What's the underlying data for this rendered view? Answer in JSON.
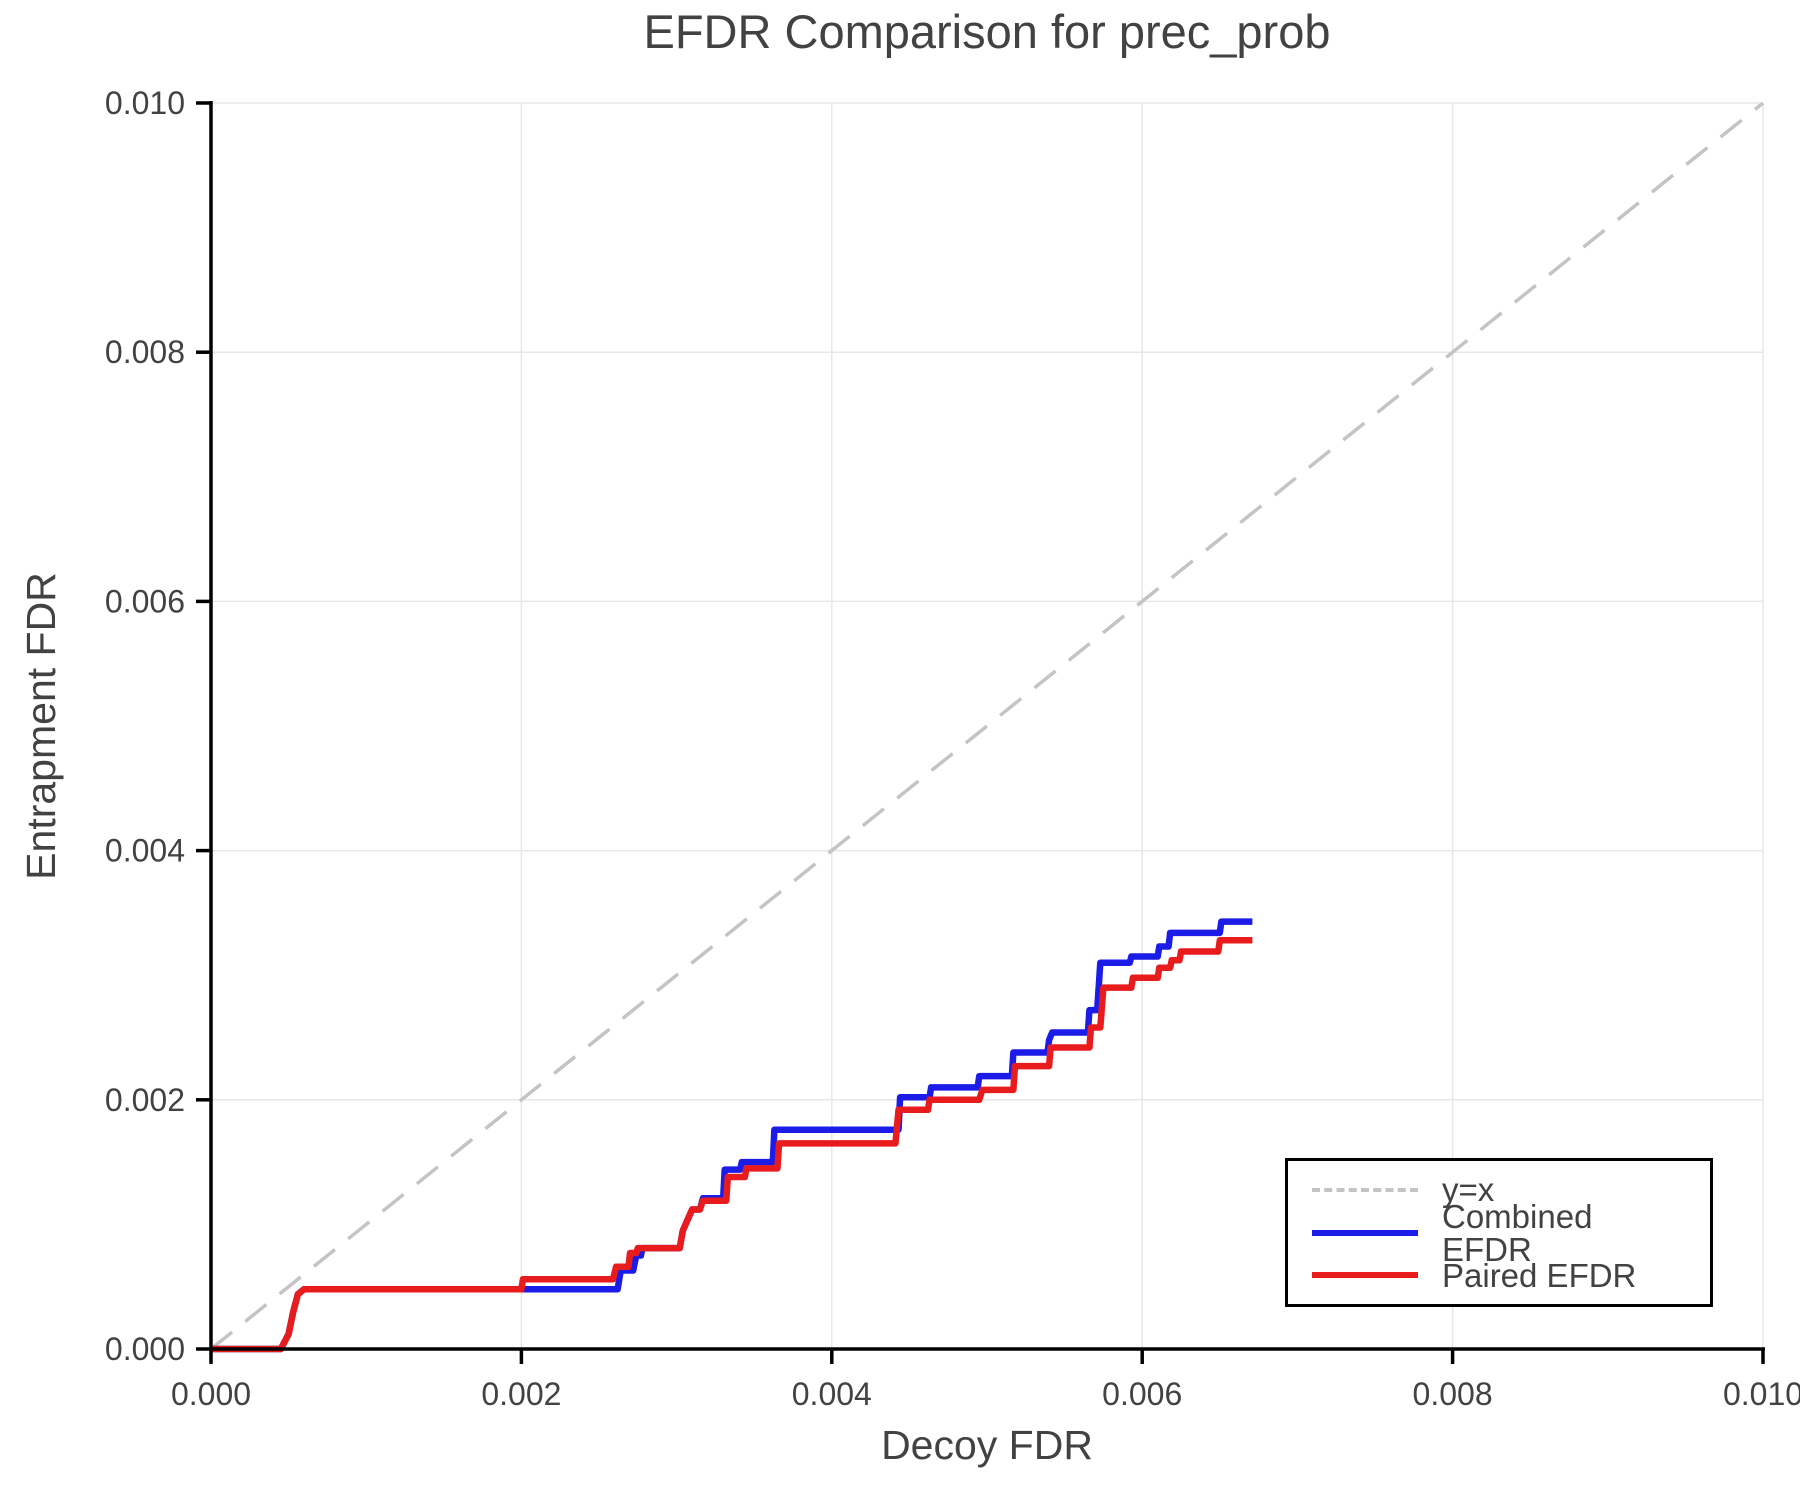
{
  "chart_data": {
    "type": "line",
    "title": "EFDR Comparison for prec_prob",
    "xlabel": "Decoy FDR",
    "ylabel": "Entrapment FDR",
    "xlim": [
      0,
      0.01
    ],
    "ylim": [
      0,
      0.01
    ],
    "grid": true,
    "xticks": {
      "values": [
        0,
        0.002,
        0.004,
        0.006,
        0.008,
        0.01
      ],
      "labels": [
        "0.000",
        "0.002",
        "0.004",
        "0.006",
        "0.008",
        "0.010"
      ]
    },
    "yticks": {
      "values": [
        0,
        0.002,
        0.004,
        0.006,
        0.008,
        0.01
      ],
      "labels": [
        "0.000",
        "0.002",
        "0.004",
        "0.006",
        "0.008",
        "0.010"
      ]
    },
    "colors": {
      "grid": "#e7e7e7",
      "spine": "#000000",
      "text": "#424242",
      "background": "#ffffff",
      "reference": "#c4c4c4",
      "combined": "#1c1ce8",
      "paired": "#e81c1c"
    },
    "reference_line": {
      "label": "y=x",
      "from": [
        0,
        0
      ],
      "to": [
        0.01,
        0.01
      ],
      "color": "#c4c4c4",
      "style": "dashed"
    },
    "legend": {
      "position": "lower right",
      "entries": [
        {
          "label": "y=x",
          "color": "#c4c4c4",
          "style": "dashed"
        },
        {
          "label": "Combined EFDR",
          "color": "#1c1ce8",
          "style": "solid"
        },
        {
          "label": "Paired EFDR",
          "color": "#e81c1c",
          "style": "solid"
        }
      ]
    },
    "series": [
      {
        "name": "Combined EFDR",
        "color": "#1c1ce8",
        "points": [
          [
            0.0,
            0.0
          ],
          [
            0.00045,
            0.0
          ],
          [
            0.0005,
            0.00012
          ],
          [
            0.00053,
            0.0003
          ],
          [
            0.00056,
            0.00044
          ],
          [
            0.0006,
            0.00048
          ],
          [
            0.00262,
            0.00048
          ],
          [
            0.00264,
            0.00063
          ],
          [
            0.00272,
            0.00063
          ],
          [
            0.00274,
            0.00075
          ],
          [
            0.00277,
            0.00075
          ],
          [
            0.00278,
            0.00081
          ],
          [
            0.00302,
            0.00081
          ],
          [
            0.00304,
            0.00095
          ],
          [
            0.0031,
            0.00112
          ],
          [
            0.00315,
            0.00112
          ],
          [
            0.00317,
            0.00121
          ],
          [
            0.0033,
            0.00121
          ],
          [
            0.00331,
            0.00144
          ],
          [
            0.00341,
            0.00144
          ],
          [
            0.00342,
            0.0015
          ],
          [
            0.00362,
            0.0015
          ],
          [
            0.00363,
            0.00176
          ],
          [
            0.00443,
            0.00176
          ],
          [
            0.00444,
            0.00202
          ],
          [
            0.00463,
            0.00202
          ],
          [
            0.00464,
            0.0021
          ],
          [
            0.00494,
            0.0021
          ],
          [
            0.00495,
            0.00219
          ],
          [
            0.00516,
            0.00219
          ],
          [
            0.00517,
            0.00238
          ],
          [
            0.00539,
            0.00238
          ],
          [
            0.0054,
            0.00248
          ],
          [
            0.00542,
            0.00254
          ],
          [
            0.00565,
            0.00254
          ],
          [
            0.00566,
            0.00272
          ],
          [
            0.00571,
            0.00272
          ],
          [
            0.00573,
            0.0031
          ],
          [
            0.00592,
            0.0031
          ],
          [
            0.00593,
            0.00315
          ],
          [
            0.0061,
            0.00315
          ],
          [
            0.00611,
            0.00323
          ],
          [
            0.00617,
            0.00323
          ],
          [
            0.00618,
            0.00334
          ],
          [
            0.0065,
            0.00334
          ],
          [
            0.00651,
            0.00343
          ],
          [
            0.00671,
            0.00343
          ]
        ]
      },
      {
        "name": "Paired EFDR",
        "color": "#e81c1c",
        "points": [
          [
            0.0,
            0.0
          ],
          [
            0.00045,
            0.0
          ],
          [
            0.0005,
            0.00012
          ],
          [
            0.00053,
            0.0003
          ],
          [
            0.00056,
            0.00044
          ],
          [
            0.0006,
            0.00048
          ],
          [
            0.002,
            0.00048
          ],
          [
            0.00201,
            0.00056
          ],
          [
            0.00259,
            0.00056
          ],
          [
            0.00261,
            0.00066
          ],
          [
            0.00269,
            0.00066
          ],
          [
            0.0027,
            0.00077
          ],
          [
            0.00274,
            0.00077
          ],
          [
            0.00275,
            0.00081
          ],
          [
            0.00302,
            0.00081
          ],
          [
            0.00304,
            0.00095
          ],
          [
            0.0031,
            0.00112
          ],
          [
            0.00315,
            0.00112
          ],
          [
            0.00317,
            0.00119
          ],
          [
            0.00332,
            0.00119
          ],
          [
            0.00333,
            0.00138
          ],
          [
            0.00344,
            0.00138
          ],
          [
            0.00345,
            0.00145
          ],
          [
            0.00365,
            0.00145
          ],
          [
            0.00366,
            0.00165
          ],
          [
            0.00441,
            0.00165
          ],
          [
            0.00443,
            0.00192
          ],
          [
            0.00462,
            0.00192
          ],
          [
            0.00463,
            0.002
          ],
          [
            0.00495,
            0.002
          ],
          [
            0.00497,
            0.00208
          ],
          [
            0.00517,
            0.00208
          ],
          [
            0.00518,
            0.00227
          ],
          [
            0.0054,
            0.00227
          ],
          [
            0.00541,
            0.00242
          ],
          [
            0.00566,
            0.00242
          ],
          [
            0.00567,
            0.00258
          ],
          [
            0.00573,
            0.00258
          ],
          [
            0.00575,
            0.0029
          ],
          [
            0.00593,
            0.0029
          ],
          [
            0.00594,
            0.00298
          ],
          [
            0.0061,
            0.00298
          ],
          [
            0.00611,
            0.00306
          ],
          [
            0.00618,
            0.00306
          ],
          [
            0.00619,
            0.00312
          ],
          [
            0.00624,
            0.00312
          ],
          [
            0.00625,
            0.00319
          ],
          [
            0.00649,
            0.00319
          ],
          [
            0.0065,
            0.00328
          ],
          [
            0.00671,
            0.00328
          ]
        ]
      }
    ]
  }
}
